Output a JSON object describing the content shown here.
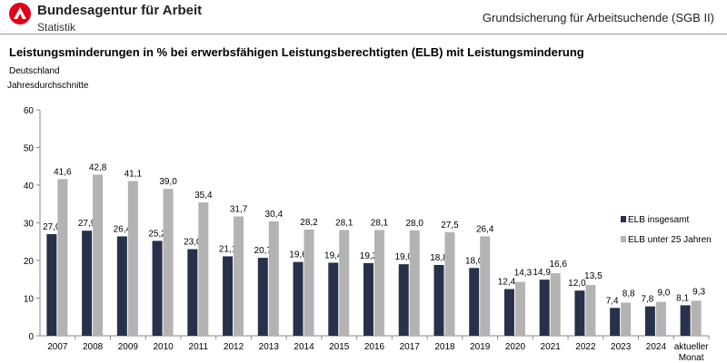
{
  "header": {
    "org": "Bundesagentur für Arbeit",
    "sub": "Statistik",
    "right_title": "Grundsicherung für Arbeitsuchende (SGB II)"
  },
  "colors": {
    "logo": "#e2001a",
    "series1": "#27314a",
    "series2": "#b3b3b3"
  },
  "chart_data": {
    "type": "bar",
    "title": "Leistungsminderungen in % bei erwerbsfähigen Leistungsberechtigten (ELB) mit Leistungsminderung",
    "subtitle1": "Deutschland",
    "subtitle2": "Jahresdurchschnitte",
    "categories": [
      "2007",
      "2008",
      "2009",
      "2010",
      "2011",
      "2012",
      "2013",
      "2014",
      "2015",
      "2016",
      "2017",
      "2018",
      "2019",
      "2020",
      "2021",
      "2022",
      "2023",
      "2024",
      "aktueller Monat"
    ],
    "series": [
      {
        "name": "ELB insgesamt",
        "color": "#27314a",
        "values": [
          27.0,
          27.9,
          26.4,
          25.2,
          23.0,
          21.1,
          20.7,
          19.6,
          19.4,
          19.3,
          19.0,
          18.8,
          18.0,
          12.4,
          14.9,
          12.0,
          7.4,
          7.8,
          8.1
        ]
      },
      {
        "name": "ELB unter 25 Jahren",
        "color": "#b3b3b3",
        "values": [
          41.6,
          42.8,
          41.1,
          39.0,
          35.4,
          31.7,
          30.4,
          28.2,
          28.1,
          28.1,
          28.0,
          27.5,
          26.4,
          14.3,
          16.6,
          13.5,
          8.8,
          9.0,
          9.3
        ]
      }
    ],
    "yticks": [
      0,
      10,
      20,
      30,
      40,
      50,
      60
    ],
    "ylim": [
      0,
      60
    ],
    "grid": false,
    "legend": "right",
    "decimal_separator": ","
  }
}
